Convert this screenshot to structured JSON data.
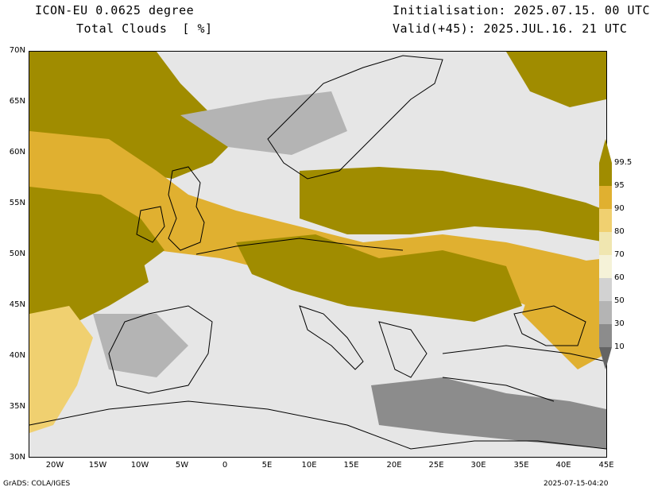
{
  "header": {
    "model": "ICON-EU 0.0625 degree",
    "field": "Total Clouds  [ %]",
    "init": "Initialisation: 2025.07.15. 00 UTC",
    "valid": "Valid(+45): 2025.JUL.16. 21 UTC"
  },
  "footer": {
    "credit": "GrADS: COLA/IGES",
    "timestamp": "2025-07-15-04:20"
  },
  "axes": {
    "lat_labels": [
      "70N",
      "65N",
      "60N",
      "55N",
      "50N",
      "45N",
      "40N",
      "35N",
      "30N"
    ],
    "lon_labels": [
      "20W",
      "15W",
      "10W",
      "5W",
      "0",
      "5E",
      "10E",
      "15E",
      "20E",
      "25E",
      "30E",
      "35E",
      "40E",
      "45E"
    ]
  },
  "colorbar": {
    "levels": [
      "99.5",
      "95",
      "90",
      "80",
      "70",
      "60",
      "50",
      "30",
      "10"
    ],
    "colors": [
      "#a08c00",
      "#e0b030",
      "#f0d070",
      "#f0e6b0",
      "#f5f2d8",
      "#d2d2d2",
      "#b4b4b4",
      "#8c8c8c",
      "#646464"
    ]
  },
  "map": {
    "background_color": "#e6e6e6",
    "cloud_colors": {
      "overcast": "#a08c00",
      "high": "#e0b030",
      "mid": "#f0d070",
      "light": "#f0e6b0",
      "grey": "#a0a0a0",
      "dark_grey": "#707070"
    }
  }
}
